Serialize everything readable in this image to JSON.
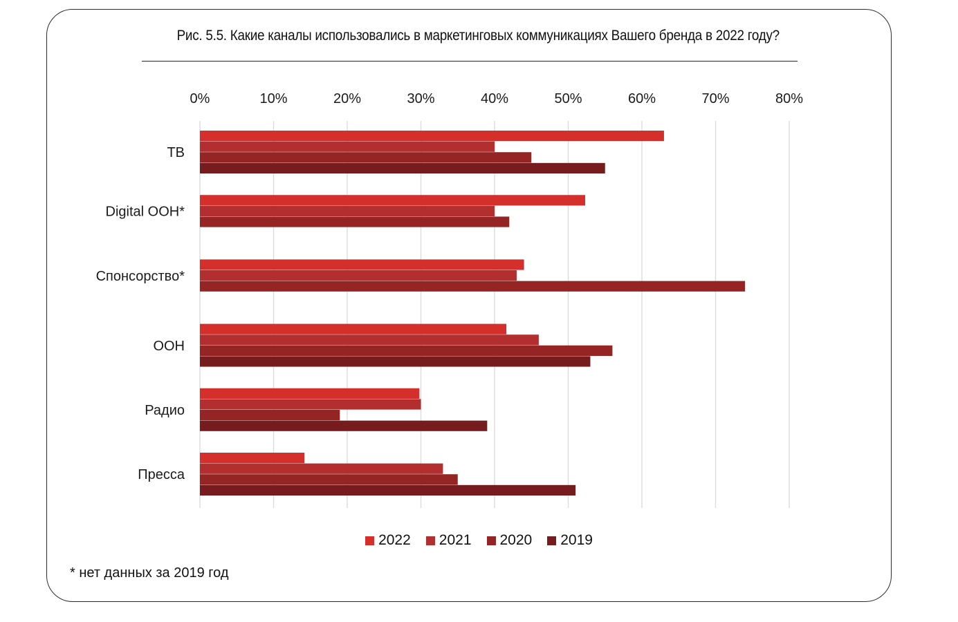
{
  "title": "Рис. 5.5.  Какие каналы использовались в маркетинговых коммуникациях Вашего бренда в 2022 году?",
  "footnote": "* нет данных за 2019 год",
  "colors": {
    "2022": "#d42f2b",
    "2021": "#b32f2f",
    "2020": "#942524",
    "2019": "#761c1f",
    "grid": "#d9d9d9"
  },
  "chart_data": {
    "type": "bar",
    "orientation": "horizontal",
    "categories": [
      "ТВ",
      "Digital OOH*",
      "Спонсорство*",
      "OOH",
      "Радио",
      "Пресса"
    ],
    "series": [
      {
        "name": "2022",
        "values": [
          63,
          52.3,
          44,
          41.6,
          29.8,
          14.2
        ]
      },
      {
        "name": "2021",
        "values": [
          40,
          40,
          43,
          46,
          30,
          33
        ]
      },
      {
        "name": "2020",
        "values": [
          45,
          42,
          74,
          56,
          19,
          35
        ]
      },
      {
        "name": "2019",
        "values": [
          55,
          null,
          null,
          53,
          39,
          51
        ]
      }
    ],
    "xlim": [
      0,
      80
    ],
    "ticks": [
      "0%",
      "10%",
      "20%",
      "30%",
      "40%",
      "50%",
      "60%",
      "70%",
      "80%"
    ],
    "grid": true,
    "legend": "bottom"
  }
}
